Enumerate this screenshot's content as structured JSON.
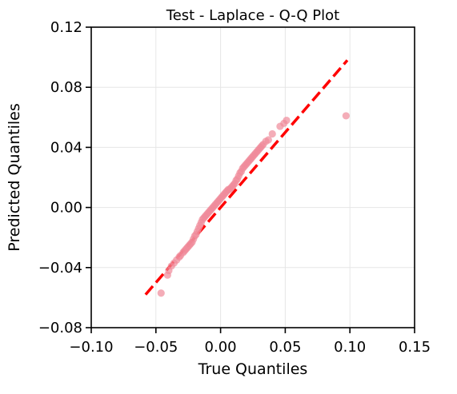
{
  "chart_data": {
    "type": "scatter",
    "title": "Test - Laplace - Q-Q Plot",
    "xlabel": "True Quantiles",
    "ylabel": "Predicted Quantiles",
    "xlim": [
      -0.1,
      0.15
    ],
    "ylim": [
      -0.08,
      0.12
    ],
    "xticks": [
      -0.1,
      -0.05,
      0.0,
      0.05,
      0.1,
      0.15
    ],
    "yticks": [
      -0.08,
      -0.04,
      0.0,
      0.04,
      0.08,
      0.12
    ],
    "xtick_labels": [
      "−0.10",
      "−0.05",
      "0.00",
      "0.05",
      "0.10",
      "0.15"
    ],
    "ytick_labels": [
      "−0.08",
      "−0.04",
      "0.00",
      "0.04",
      "0.08",
      "0.12"
    ],
    "grid": true,
    "colors": {
      "points": "#f08a9a",
      "reference_line": "#ff0000"
    },
    "reference_line": {
      "x": [
        -0.058,
        0.098
      ],
      "y": [
        -0.058,
        0.098
      ]
    },
    "points": {
      "x": [
        -0.046,
        -0.041,
        -0.04,
        -0.038,
        -0.036,
        -0.034,
        -0.032,
        -0.031,
        -0.029,
        -0.028,
        -0.027,
        -0.026,
        -0.025,
        -0.024,
        -0.023,
        -0.022,
        -0.021,
        -0.02,
        -0.019,
        -0.018,
        -0.017,
        -0.016,
        -0.015,
        -0.014,
        -0.013,
        -0.012,
        -0.011,
        -0.01,
        -0.009,
        -0.008,
        -0.007,
        -0.006,
        -0.005,
        -0.004,
        -0.003,
        -0.002,
        -0.001,
        0.0,
        0.001,
        0.002,
        0.003,
        0.004,
        0.005,
        0.006,
        0.007,
        0.008,
        0.009,
        0.01,
        0.011,
        0.012,
        0.013,
        0.014,
        0.015,
        0.016,
        0.017,
        0.018,
        0.019,
        0.02,
        0.021,
        0.022,
        0.023,
        0.024,
        0.025,
        0.026,
        0.027,
        0.028,
        0.029,
        0.03,
        0.031,
        0.032,
        0.033,
        0.035,
        0.037,
        0.04,
        0.046,
        0.049,
        0.051,
        0.097
      ],
      "y": [
        -0.057,
        -0.045,
        -0.042,
        -0.039,
        -0.037,
        -0.035,
        -0.033,
        -0.032,
        -0.03,
        -0.029,
        -0.028,
        -0.027,
        -0.026,
        -0.025,
        -0.024,
        -0.023,
        -0.021,
        -0.019,
        -0.018,
        -0.016,
        -0.014,
        -0.012,
        -0.01,
        -0.008,
        -0.007,
        -0.006,
        -0.005,
        -0.004,
        -0.003,
        -0.002,
        -0.001,
        0.0,
        0.001,
        0.002,
        0.003,
        0.004,
        0.005,
        0.006,
        0.007,
        0.008,
        0.009,
        0.01,
        0.011,
        0.012,
        0.012,
        0.013,
        0.014,
        0.015,
        0.016,
        0.018,
        0.019,
        0.021,
        0.023,
        0.024,
        0.026,
        0.027,
        0.028,
        0.029,
        0.03,
        0.031,
        0.032,
        0.033,
        0.034,
        0.035,
        0.036,
        0.037,
        0.038,
        0.039,
        0.04,
        0.041,
        0.042,
        0.044,
        0.045,
        0.049,
        0.054,
        0.056,
        0.058,
        0.061
      ]
    }
  }
}
